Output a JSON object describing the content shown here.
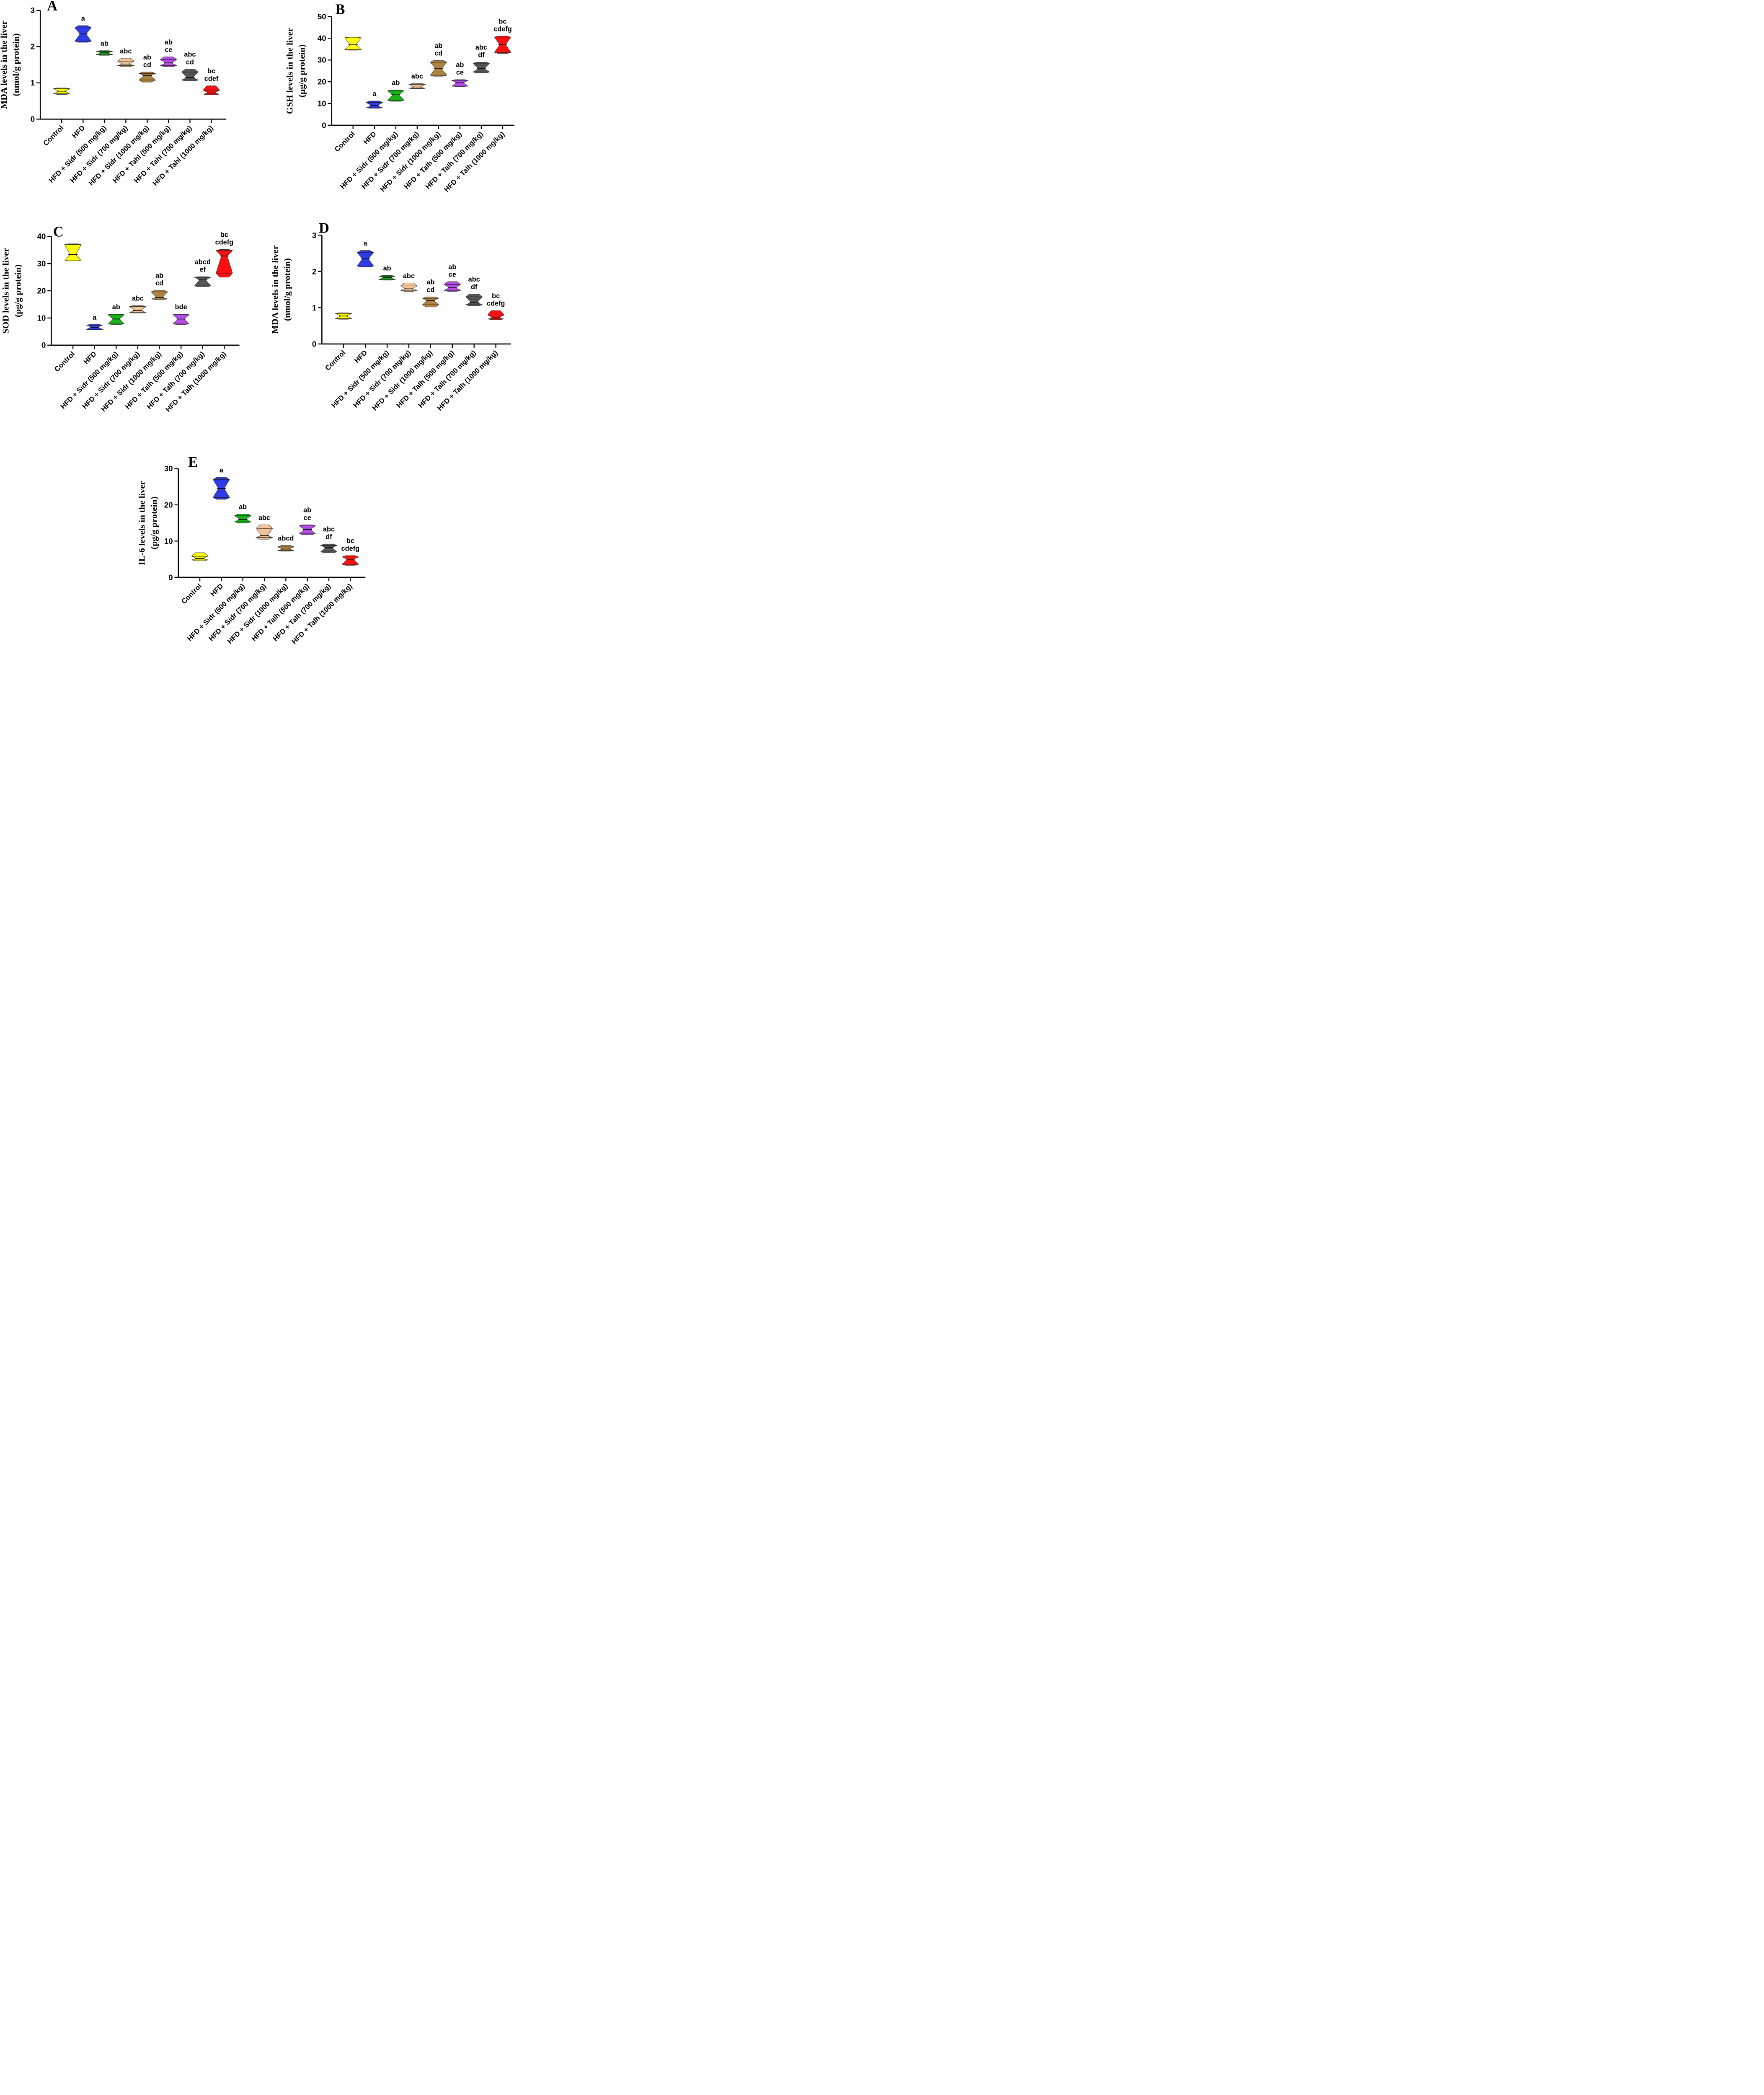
{
  "colors": {
    "series": [
      "#ffff00",
      "#2f3be6",
      "#17b317",
      "#f2c396",
      "#b08440",
      "#b74ae8",
      "#555555",
      "#ff1010"
    ],
    "axis": "#000000"
  },
  "chart_data": [
    {
      "type": "violin",
      "panel": "A",
      "ylabel_line1": "MDA levels in the liver",
      "ylabel_line2": "(nmol/g protein)",
      "ylim": [
        0,
        3
      ],
      "yticks": [
        "0",
        "1",
        "2",
        "3"
      ],
      "categories": [
        "Control",
        "HFD",
        "HFD + Sidr (500 mg/kg)",
        "HFD + Sidr (700 mg/kg)",
        "HFD + Sidr (1000 mg/kg)",
        "HFD + Tahl (500 mg/kg)",
        "HFD + Tahl (700 mg/kg)",
        "HFD + Tahl (1000 mg/kg)"
      ],
      "groups": [
        {
          "min": 0.68,
          "q1": 0.7,
          "median": 0.77,
          "q3": 0.84,
          "max": 0.86,
          "sig": []
        },
        {
          "min": 2.12,
          "q1": 2.15,
          "median": 2.35,
          "q3": 2.52,
          "max": 2.58,
          "sig": [
            "a"
          ]
        },
        {
          "min": 1.76,
          "q1": 1.78,
          "median": 1.83,
          "q3": 1.87,
          "max": 1.89,
          "sig": [
            "ab"
          ]
        },
        {
          "min": 1.45,
          "q1": 1.48,
          "median": 1.52,
          "q3": 1.6,
          "max": 1.68,
          "sig": [
            "abc"
          ]
        },
        {
          "min": 1.02,
          "q1": 1.08,
          "median": 1.2,
          "q3": 1.26,
          "max": 1.3,
          "sig": [
            "ab",
            "cd"
          ]
        },
        {
          "min": 1.45,
          "q1": 1.48,
          "median": 1.55,
          "q3": 1.64,
          "max": 1.72,
          "sig": [
            "ab",
            "ce"
          ]
        },
        {
          "min": 1.05,
          "q1": 1.08,
          "median": 1.15,
          "q3": 1.3,
          "max": 1.38,
          "sig": [
            "abc",
            "cd"
          ]
        },
        {
          "min": 0.67,
          "q1": 0.69,
          "median": 0.72,
          "q3": 0.8,
          "max": 0.92,
          "sig": [
            "bc",
            "cdef"
          ]
        }
      ]
    },
    {
      "type": "violin",
      "panel": "B",
      "ylabel_line1": "GSH levels in the liver",
      "ylabel_line2": "(µg/g protein)",
      "ylim": [
        0,
        50
      ],
      "yticks": [
        "0",
        "10",
        "20",
        "30",
        "40",
        "50"
      ],
      "categories": [
        "Control",
        "HFD",
        "HFD + Sidr (500 mg/kg)",
        "HFD + Sidr (700 mg/kg)",
        "HFD + Sidr (1000 mg/kg)",
        "HFD + Talh (500 mg/kg)",
        "HFD + Talh (700 mg/kg)",
        "HFD + Talh (1000 mg/kg)"
      ],
      "groups": [
        {
          "min": 34.5,
          "q1": 34.8,
          "median": 37,
          "q3": 40.2,
          "max": 40.5,
          "sig": []
        },
        {
          "min": 7.8,
          "q1": 8.0,
          "median": 9,
          "q3": 10.5,
          "max": 11.2,
          "sig": [
            "a"
          ]
        },
        {
          "min": 11,
          "q1": 11.5,
          "median": 14,
          "q3": 15.8,
          "max": 16.2,
          "sig": [
            "ab"
          ]
        },
        {
          "min": 16.8,
          "q1": 17.0,
          "median": 17.6,
          "q3": 18.8,
          "max": 19.2,
          "sig": [
            "abc"
          ]
        },
        {
          "min": 22.5,
          "q1": 23.0,
          "median": 26,
          "q3": 29,
          "max": 29.8,
          "sig": [
            "ab",
            "cd"
          ]
        },
        {
          "min": 17.8,
          "q1": 18.0,
          "median": 19.5,
          "q3": 20.6,
          "max": 21,
          "sig": [
            "ab",
            "ce"
          ]
        },
        {
          "min": 24,
          "q1": 24.5,
          "median": 26,
          "q3": 28.5,
          "max": 29,
          "sig": [
            "abc",
            "df"
          ]
        },
        {
          "min": 33,
          "q1": 33.5,
          "median": 37,
          "q3": 40.5,
          "max": 41,
          "sig": [
            "bc",
            "cdefg"
          ]
        }
      ]
    },
    {
      "type": "violin",
      "panel": "C",
      "ylabel_line1": "SOD levels in the liver",
      "ylabel_line2": "(pg/g protein)",
      "ylim": [
        0,
        40
      ],
      "yticks": [
        "0",
        "10",
        "20",
        "30",
        "40"
      ],
      "categories": [
        "Control",
        "HFD",
        "HFD + Sidr (500 mg/kg)",
        "HFD + Sidr (700 mg/kg)",
        "HFD + Sidr (1000 mg/kg)",
        "HFD + Talh (500 mg/kg)",
        "HFD + Talh (700 mg/kg)",
        "HFD + Talh (1000 mg/kg)"
      ],
      "groups": [
        {
          "min": 31,
          "q1": 31.3,
          "median": 33.3,
          "q3": 37,
          "max": 37.3,
          "sig": []
        },
        {
          "min": 5.6,
          "q1": 5.8,
          "median": 6.6,
          "q3": 7.4,
          "max": 7.6,
          "sig": [
            "a"
          ]
        },
        {
          "min": 7.6,
          "q1": 7.8,
          "median": 9.6,
          "q3": 11.2,
          "max": 11.4,
          "sig": [
            "ab"
          ]
        },
        {
          "min": 11.8,
          "q1": 12.0,
          "median": 12.8,
          "q3": 14.2,
          "max": 14.6,
          "sig": [
            "abc"
          ]
        },
        {
          "min": 16.8,
          "q1": 17.0,
          "median": 17.6,
          "q3": 19.6,
          "max": 20.2,
          "sig": [
            "ab",
            "cd"
          ]
        },
        {
          "min": 7.6,
          "q1": 7.8,
          "median": 9.6,
          "q3": 11.2,
          "max": 11.4,
          "sig": [
            "bde"
          ]
        },
        {
          "min": 21.5,
          "q1": 21.8,
          "median": 24,
          "q3": 25,
          "max": 25.2,
          "sig": [
            "abcd",
            "ef"
          ]
        },
        {
          "min": 25,
          "q1": 26.5,
          "median": 32.8,
          "q3": 34.8,
          "max": 35.2,
          "sig": [
            "bc",
            "cdefg"
          ]
        }
      ]
    },
    {
      "type": "violin",
      "panel": "D",
      "ylabel_line1": "MDA levels in the liver",
      "ylabel_line2": "(nmol/g protein)",
      "ylim": [
        0,
        3
      ],
      "yticks": [
        "0",
        "1",
        "2",
        "3"
      ],
      "categories": [
        "Control",
        "HFD",
        "HFD + Sidr (500 mg/kg)",
        "HFD + Sidr (700 mg/kg)",
        "HFD + Sidr (1000 mg/kg)",
        "HFD + Talh (500 mg/kg)",
        "HFD + Talh (700 mg/kg)",
        "HFD + Talh (1000 mg/kg)"
      ],
      "groups": [
        {
          "min": 0.68,
          "q1": 0.7,
          "median": 0.77,
          "q3": 0.84,
          "max": 0.86,
          "sig": []
        },
        {
          "min": 2.12,
          "q1": 2.15,
          "median": 2.35,
          "q3": 2.52,
          "max": 2.58,
          "sig": [
            "a"
          ]
        },
        {
          "min": 1.76,
          "q1": 1.78,
          "median": 1.83,
          "q3": 1.87,
          "max": 1.89,
          "sig": [
            "ab"
          ]
        },
        {
          "min": 1.45,
          "q1": 1.48,
          "median": 1.52,
          "q3": 1.6,
          "max": 1.68,
          "sig": [
            "abc"
          ]
        },
        {
          "min": 1.02,
          "q1": 1.08,
          "median": 1.2,
          "q3": 1.26,
          "max": 1.3,
          "sig": [
            "ab",
            "cd"
          ]
        },
        {
          "min": 1.45,
          "q1": 1.48,
          "median": 1.55,
          "q3": 1.64,
          "max": 1.72,
          "sig": [
            "ab",
            "ce"
          ]
        },
        {
          "min": 1.05,
          "q1": 1.08,
          "median": 1.15,
          "q3": 1.3,
          "max": 1.38,
          "sig": [
            "abc",
            "df"
          ]
        },
        {
          "min": 0.67,
          "q1": 0.69,
          "median": 0.72,
          "q3": 0.8,
          "max": 0.92,
          "sig": [
            "bc",
            "cdefg"
          ]
        }
      ]
    },
    {
      "type": "violin",
      "panel": "E",
      "ylabel_line1": "IL-6 levels in the liver",
      "ylabel_line2": "(pg/g protein)",
      "ylim": [
        0,
        30
      ],
      "yticks": [
        "0",
        "10",
        "20",
        "30"
      ],
      "categories": [
        "Control",
        "HFD",
        "HFD + Sidr (500 mg/kg)",
        "HFD + Sidr (700 mg/kg)",
        "HFD + Sidr (1000 mg/kg)",
        "HFD + Talh (500 mg/kg)",
        "HFD + Talh (700 mg/kg)",
        "HFD + Talh (1000 mg/kg)"
      ],
      "groups": [
        {
          "min": 4.6,
          "q1": 4.8,
          "median": 5.2,
          "q3": 5.8,
          "max": 6.8,
          "sig": []
        },
        {
          "min": 21.5,
          "q1": 22.0,
          "median": 24.5,
          "q3": 27,
          "max": 27.6,
          "sig": [
            "a"
          ]
        },
        {
          "min": 15,
          "q1": 15.3,
          "median": 16,
          "q3": 17,
          "max": 17.5,
          "sig": [
            "ab"
          ]
        },
        {
          "min": 10.5,
          "q1": 11.0,
          "median": 11.5,
          "q3": 13.5,
          "max": 14.5,
          "sig": [
            "abc"
          ]
        },
        {
          "min": 7.2,
          "q1": 7.4,
          "median": 7.8,
          "q3": 8.4,
          "max": 8.8,
          "sig": [
            "abcd"
          ]
        },
        {
          "min": 11.8,
          "q1": 12.0,
          "median": 13.2,
          "q3": 14.2,
          "max": 14.5,
          "sig": [
            "ab",
            "ce"
          ]
        },
        {
          "min": 6.8,
          "q1": 7.0,
          "median": 8.2,
          "q3": 8.8,
          "max": 9.2,
          "sig": [
            "abc",
            "df"
          ]
        },
        {
          "min": 3.3,
          "q1": 3.6,
          "median": 5,
          "q3": 5.6,
          "max": 6,
          "sig": [
            "bc",
            "cdefg"
          ]
        }
      ]
    }
  ]
}
